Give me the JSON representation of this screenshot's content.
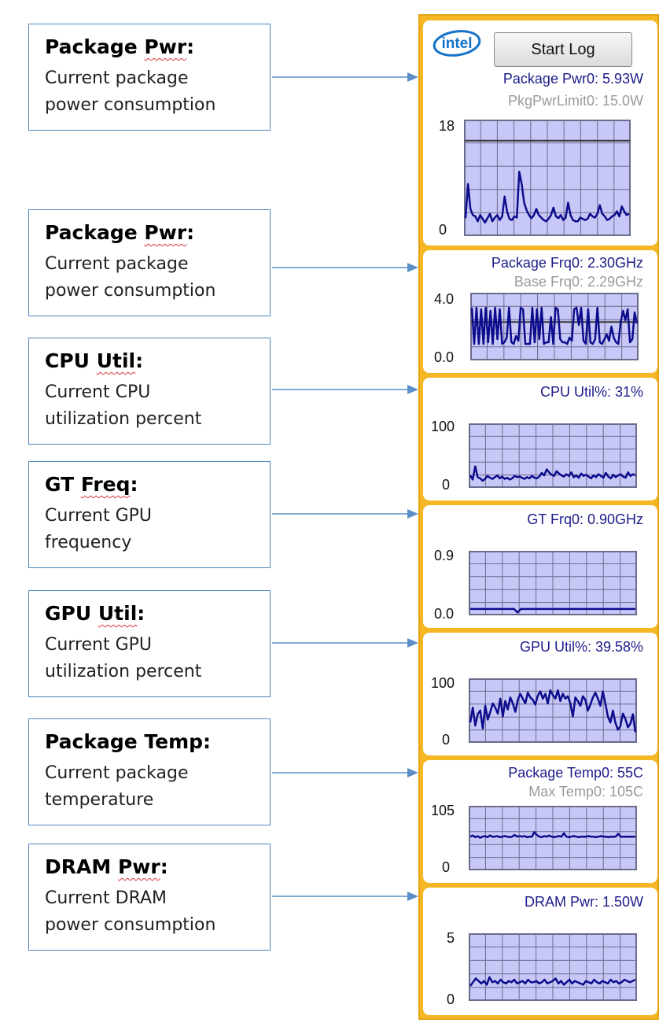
{
  "callouts": [
    {
      "title_word": "Package",
      "title_sq": "Pwr",
      "title_end": ":",
      "desc_lines": [
        "Current package",
        "power consumption"
      ]
    },
    {
      "title_word": "Package",
      "title_sq": "Pwr",
      "title_end": ":",
      "desc_lines": [
        "Current package",
        "power consumption"
      ]
    },
    {
      "title_word": "CPU",
      "title_sq": "Util",
      "title_end": ":",
      "desc_lines": [
        "Current CPU",
        "utilization percent"
      ]
    },
    {
      "title_word": "GT",
      "title_sq": "Freq",
      "title_end": ":",
      "desc_lines": [
        "Current GPU",
        "frequency"
      ]
    },
    {
      "title_word": "GPU",
      "title_sq": "Util",
      "title_end": ":",
      "desc_lines": [
        "Current GPU",
        "utilization percent"
      ]
    },
    {
      "title_word": "Package Temp:",
      "title_sq": "",
      "title_end": "",
      "desc_lines": [
        "Current package",
        "temperature"
      ]
    },
    {
      "title_word": "DRAM",
      "title_sq": "Pwr",
      "title_end": ":",
      "desc_lines": [
        "Current DRAM",
        "power consumption"
      ]
    }
  ],
  "gadget": {
    "logo_text": "intel",
    "start_log_label": "Start Log",
    "colors": {
      "frame": "#f5b724",
      "plot_bg": "#c8c8f8",
      "grid": "#6b6b8c",
      "line": "#0c0c8c",
      "label": "#1c1c8a",
      "sublabel": "#9a9a9a"
    },
    "panels": [
      {
        "label": "Package Pwr0:  5.93W",
        "sublabel": "PkgPwrLimit0:  15.0W",
        "y_max": "18",
        "y_min": "0"
      },
      {
        "label": "Package Frq0:  2.30GHz",
        "sublabel": "Base Frq0:  2.29GHz",
        "y_max": "4.0",
        "y_min": "0.0"
      },
      {
        "label": "CPU Util%:  31%",
        "sublabel": "",
        "y_max": "100",
        "y_min": "0"
      },
      {
        "label": "GT Frq0:    0.90GHz",
        "sublabel": "",
        "y_max": "0.9",
        "y_min": "0.0"
      },
      {
        "label": "GPU Util%:  39.58%",
        "sublabel": "",
        "y_max": "100",
        "y_min": "0"
      },
      {
        "label": "Package Temp0:  55C",
        "sublabel": "Max Temp0:  105C",
        "y_max": "105",
        "y_min": "0"
      },
      {
        "label": "DRAM Pwr:   1.50W",
        "sublabel": "",
        "y_max": "5",
        "y_min": "0"
      }
    ],
    "series": [
      {
        "ymin": 0,
        "ymax": 18,
        "ref": 15.0,
        "values": [
          2.5,
          8,
          4,
          3,
          2.8,
          2,
          3,
          2.4,
          1.8,
          2.5,
          3.2,
          2,
          2.6,
          3,
          2.2,
          2.8,
          6,
          3.6,
          2.4,
          2.2,
          2.8,
          2.6,
          10,
          8,
          5,
          3.8,
          3,
          2.5,
          3,
          4,
          3,
          2.6,
          2.2,
          2,
          2.4,
          3,
          4.2,
          2.8,
          2.5,
          3,
          2.2,
          2.6,
          5,
          3,
          2.2,
          2,
          2,
          2.6,
          2.4,
          2.2,
          2.4,
          3.2,
          2.8,
          2.6,
          3.2,
          4.6,
          3.2,
          2.8,
          2.2,
          2.4,
          2.8,
          3,
          3.6,
          2.8,
          4.4,
          3.6,
          3,
          3.2
        ]
      },
      {
        "ymin": 0,
        "ymax": 4,
        "ref": 2.29,
        "values": [
          3.2,
          0.9,
          3.2,
          0.9,
          3.1,
          0.9,
          3.2,
          1.0,
          3.0,
          0.9,
          3.2,
          1.2,
          3.1,
          0.9,
          1.0,
          1.3,
          3.2,
          1.0,
          0.9,
          1.4,
          1.1,
          3.2,
          3.1,
          0.9,
          0.9,
          0.9,
          3.2,
          1.0,
          3.1,
          1.2,
          3.2,
          0.9,
          1.0,
          1.0,
          2.6,
          0.9,
          3.2,
          3.1,
          1.2,
          1.0,
          1.0,
          0.9,
          1.3,
          1.1,
          3.1,
          3.2,
          2.1,
          3.2,
          1.1,
          0.9,
          3.1,
          1.0,
          0.9,
          1.2,
          3.2,
          1.0,
          0.9,
          1.2,
          1.5,
          1.1,
          2.0,
          1.3,
          1.0,
          0.9,
          2.3,
          3.0,
          2.4,
          3.1,
          1.0,
          1.2,
          2.9,
          2.2
        ]
      },
      {
        "ymin": 0,
        "ymax": 100,
        "ref": null,
        "values": [
          17,
          10,
          32,
          14,
          12,
          8,
          11,
          16,
          13,
          11,
          14,
          17,
          12,
          15,
          11,
          13,
          10,
          12,
          16,
          14,
          15,
          13,
          11,
          14,
          12,
          16,
          13,
          12,
          15,
          21,
          17,
          27,
          22,
          18,
          16,
          24,
          20,
          17,
          15,
          19,
          16,
          22,
          14,
          17,
          13,
          20,
          16,
          18,
          15,
          12,
          17,
          14,
          19,
          16,
          13,
          21,
          15,
          12,
          18,
          14,
          17,
          19,
          15,
          13,
          22,
          16,
          19,
          17
        ]
      },
      {
        "ymin": 0,
        "ymax": 0.9,
        "ref": null,
        "values": [
          0.06,
          0.06,
          0.06,
          0.06,
          0.06,
          0.06,
          0.06,
          0.06,
          0.06,
          0.06,
          0.06,
          0.06,
          0.06,
          0.06,
          0.01,
          0.06,
          0.06,
          0.06,
          0.06,
          0.06,
          0.06,
          0.06,
          0.06,
          0.06,
          0.06,
          0.06,
          0.06,
          0.06,
          0.06,
          0.06,
          0.06,
          0.06,
          0.06,
          0.06,
          0.06,
          0.06,
          0.06,
          0.06,
          0.06,
          0.06,
          0.06,
          0.06,
          0.06,
          0.06,
          0.06,
          0.06,
          0.06,
          0.06,
          0.06,
          0.06
        ]
      },
      {
        "ymin": 0,
        "ymax": 100,
        "ref": null,
        "values": [
          30,
          55,
          25,
          44,
          50,
          20,
          58,
          35,
          48,
          62,
          55,
          45,
          70,
          40,
          66,
          52,
          72,
          62,
          48,
          68,
          78,
          70,
          62,
          80,
          72,
          68,
          60,
          75,
          82,
          70,
          78,
          62,
          84,
          76,
          70,
          84,
          66,
          78,
          70,
          74,
          62,
          40,
          72,
          66,
          58,
          74,
          68,
          50,
          60,
          72,
          80,
          70,
          58,
          82,
          62,
          40,
          30,
          50,
          30,
          18,
          24,
          45,
          36,
          22,
          28,
          44,
          14
        ]
      },
      {
        "ymin": 0,
        "ymax": 105,
        "ref": null,
        "values": [
          55,
          57,
          54,
          56,
          53,
          55,
          56,
          54,
          57,
          55,
          55,
          56,
          54,
          55,
          56,
          55,
          54,
          55,
          58,
          55,
          56,
          55,
          56,
          54,
          55,
          55,
          63,
          58,
          55,
          54,
          56,
          55,
          57,
          55,
          54,
          55,
          56,
          55,
          61,
          55,
          54,
          55,
          56,
          55,
          54,
          55,
          55,
          55,
          56,
          55,
          55,
          54,
          55,
          56,
          55,
          55,
          54,
          55,
          55,
          55,
          60,
          55,
          55,
          55,
          55,
          55,
          55,
          55
        ]
      },
      {
        "ymin": 0,
        "ymax": 5,
        "ref": null,
        "values": [
          1.0,
          1.3,
          1.6,
          1.4,
          1.2,
          1.4,
          1.1,
          1.7,
          1.3,
          1.4,
          1.2,
          1.5,
          1.3,
          1.2,
          1.4,
          1.3,
          1.5,
          1.2,
          1.3,
          1.4,
          1.2,
          1.5,
          1.3,
          1.3,
          1.4,
          1.2,
          1.3,
          1.5,
          1.2,
          1.3,
          1.4,
          1.6,
          1.2,
          1.4,
          1.1,
          1.3,
          1.5,
          1.2,
          1.4,
          1.3,
          1.2,
          1.1,
          1.4,
          1.3,
          1.2,
          1.5,
          1.3,
          1.2,
          1.4,
          1.3,
          1.2,
          1.5,
          1.3,
          1.4,
          1.2,
          1.3,
          1.5,
          1.4,
          1.3,
          1.4,
          1.5
        ]
      }
    ]
  }
}
